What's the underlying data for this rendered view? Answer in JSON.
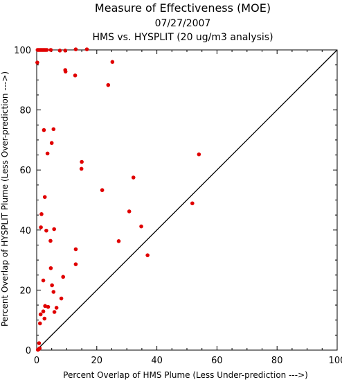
{
  "chart_data": {
    "type": "scatter",
    "title": "Measure of Effectiveness (MOE)",
    "subtitle_date": "07/27/2007",
    "subtitle": "HMS vs. HYSPLIT  (20 ug/m3 analysis)",
    "xlabel": "Percent Overlap of HMS Plume (Less Under-prediction --->)",
    "ylabel": "Percent Overlap of HYSPLIT Plume (Less Over-prediction --->)",
    "xlim": [
      0,
      100
    ],
    "ylim": [
      0,
      100
    ],
    "x_ticks": [
      0,
      20,
      40,
      60,
      80,
      100
    ],
    "y_ticks": [
      0,
      20,
      40,
      60,
      80,
      100
    ],
    "grid": false,
    "reference_line": "1:1 diagonal",
    "point_color": "#e00000",
    "points": [
      {
        "x": 0.3,
        "y": 100
      },
      {
        "x": 0.6,
        "y": 100
      },
      {
        "x": 0.9,
        "y": 100
      },
      {
        "x": 1.2,
        "y": 100
      },
      {
        "x": 1.5,
        "y": 100
      },
      {
        "x": 1.8,
        "y": 100
      },
      {
        "x": 2.1,
        "y": 100
      },
      {
        "x": 2.4,
        "y": 100
      },
      {
        "x": 2.7,
        "y": 100
      },
      {
        "x": 3.0,
        "y": 100
      },
      {
        "x": 3.4,
        "y": 100
      },
      {
        "x": 4.7,
        "y": 100
      },
      {
        "x": 7.7,
        "y": 99.8
      },
      {
        "x": 9.5,
        "y": 99.8
      },
      {
        "x": 13.0,
        "y": 100.2
      },
      {
        "x": 16.7,
        "y": 100.2
      },
      {
        "x": 0.2,
        "y": 95.8
      },
      {
        "x": 25.2,
        "y": 96.0
      },
      {
        "x": 9.5,
        "y": 93.3
      },
      {
        "x": 9.6,
        "y": 92.8
      },
      {
        "x": 12.8,
        "y": 91.5
      },
      {
        "x": 23.8,
        "y": 88.3
      },
      {
        "x": 2.4,
        "y": 73.3
      },
      {
        "x": 5.6,
        "y": 73.6
      },
      {
        "x": 5.0,
        "y": 69.0
      },
      {
        "x": 3.6,
        "y": 65.5
      },
      {
        "x": 54.0,
        "y": 65.2
      },
      {
        "x": 15.0,
        "y": 62.7
      },
      {
        "x": 14.9,
        "y": 60.4
      },
      {
        "x": 32.2,
        "y": 57.5
      },
      {
        "x": 21.8,
        "y": 53.3
      },
      {
        "x": 2.7,
        "y": 51.0
      },
      {
        "x": 51.8,
        "y": 48.9
      },
      {
        "x": 30.8,
        "y": 46.2
      },
      {
        "x": 1.6,
        "y": 45.3
      },
      {
        "x": 34.8,
        "y": 41.2
      },
      {
        "x": 1.4,
        "y": 40.9
      },
      {
        "x": 5.8,
        "y": 40.3
      },
      {
        "x": 3.2,
        "y": 39.8
      },
      {
        "x": 4.6,
        "y": 36.4
      },
      {
        "x": 27.3,
        "y": 36.3
      },
      {
        "x": 13.0,
        "y": 33.6
      },
      {
        "x": 36.9,
        "y": 31.6
      },
      {
        "x": 13.0,
        "y": 28.6
      },
      {
        "x": 4.7,
        "y": 27.3
      },
      {
        "x": 8.8,
        "y": 24.4
      },
      {
        "x": 2.2,
        "y": 23.2
      },
      {
        "x": 5.1,
        "y": 21.6
      },
      {
        "x": 5.6,
        "y": 19.4
      },
      {
        "x": 8.2,
        "y": 17.2
      },
      {
        "x": 2.8,
        "y": 14.7
      },
      {
        "x": 3.8,
        "y": 14.4
      },
      {
        "x": 6.6,
        "y": 14.1
      },
      {
        "x": 2.2,
        "y": 12.9
      },
      {
        "x": 5.9,
        "y": 12.7
      },
      {
        "x": 1.3,
        "y": 11.9
      },
      {
        "x": 2.6,
        "y": 10.5
      },
      {
        "x": 1.1,
        "y": 8.9
      },
      {
        "x": 0.8,
        "y": 2.3
      },
      {
        "x": 1.0,
        "y": 0.6
      },
      {
        "x": 0.7,
        "y": 0.3
      },
      {
        "x": 0.4,
        "y": 0.1
      }
    ]
  }
}
